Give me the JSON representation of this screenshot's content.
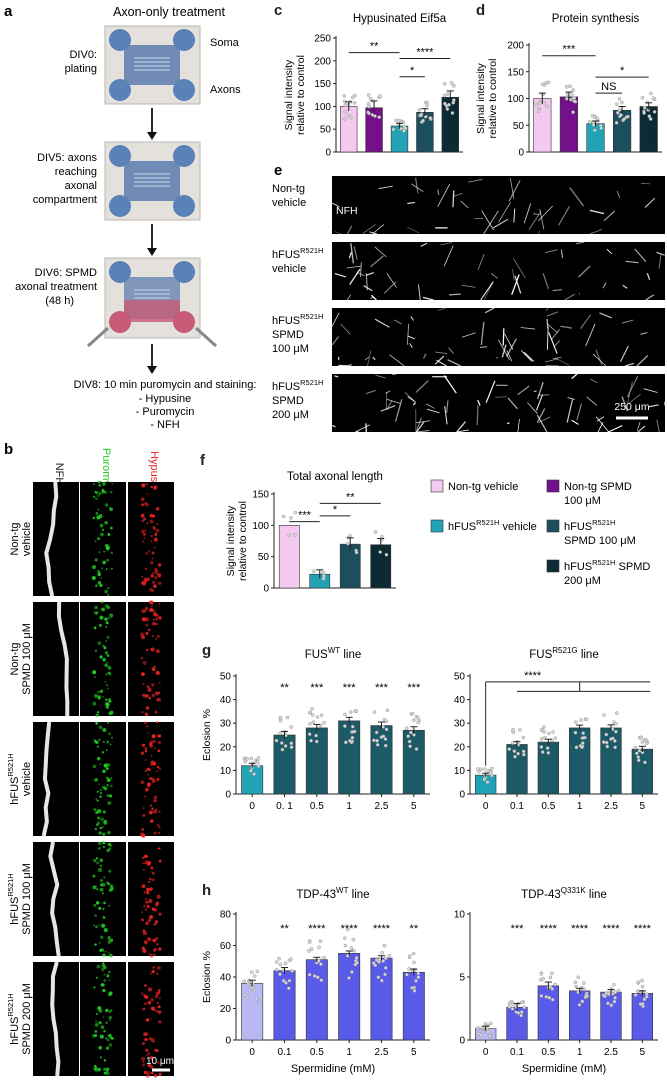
{
  "panel_letters": [
    "a",
    "b",
    "c",
    "d",
    "e",
    "f",
    "g",
    "h"
  ],
  "panel_a": {
    "title": "Axon-only treatment",
    "soma_label": "Soma",
    "axons_label": "Axons",
    "steps": [
      "DIV0:",
      "plating",
      "DIV5: axons",
      "reaching",
      "axonal",
      "compartment",
      "DIV6: SPMD",
      "axonal treatment",
      "(48 h)"
    ],
    "final_lines": [
      "DIV8: 10 min puromycin and staining:",
      "- Hypusine",
      "- Puromycin",
      "- NFH"
    ]
  },
  "panel_b": {
    "channels": [
      "NFH",
      "Puromycin",
      "Hypusine"
    ],
    "channel_colors": [
      "#ffffff",
      "#22cc22",
      "#ee2222"
    ],
    "rows": [
      {
        "l1": "Non-tg",
        "l2": "vehicle"
      },
      {
        "l1": "Non-tg",
        "l2": "SPMD 100 μM"
      },
      {
        "l1": "hFUS",
        "sup": "R521H",
        "l2": "vehicle"
      },
      {
        "l1": "hFUS",
        "sup": "R521H",
        "l2": "SPMD 100 μM"
      },
      {
        "l1": "hFUS",
        "sup": "R521H",
        "l2": "SPMD 200 μM"
      }
    ],
    "scale": "10 μm"
  },
  "panel_e": {
    "rows": [
      {
        "l1": "Non-tg",
        "l2": "vehicle"
      },
      {
        "l1": "hFUS",
        "sup": "R521H",
        "l2": "vehicle"
      },
      {
        "l1": "hFUS",
        "sup": "R521H",
        "l2": "SPMD",
        "l3": "100 μM"
      },
      {
        "l1": "hFUS",
        "sup": "R521H",
        "l2": "SPMD",
        "l3": "200 μM"
      }
    ],
    "stain": "NFH",
    "scale": "250 μm"
  },
  "legend": {
    "items": [
      {
        "text": "Non-tg vehicle",
        "color": "#f3c9f0"
      },
      {
        "text": "Non-tg SPMD",
        "text2": "100 μM",
        "color": "#74108a"
      },
      {
        "text": "hFUS",
        "sup": "R521H",
        "tail": " vehicle",
        "color": "#21a3b5"
      },
      {
        "text": "hFUS",
        "sup": "R521H",
        "text2": "SPMD 100 μM",
        "color": "#1b4f5e"
      },
      {
        "text": "hFUS",
        "sup": "R521H",
        "tail": " SPMD",
        "text2": "200 μM",
        "color": "#0b2a33"
      }
    ]
  },
  "chart_data": [
    {
      "id": "c",
      "type": "bar",
      "title": "Hypusinated Eif5a",
      "ylabel": [
        "Signal intensity",
        "relative to control"
      ],
      "ylim": [
        0,
        250
      ],
      "yticks": [
        0,
        50,
        100,
        150,
        200,
        250
      ],
      "values": [
        100,
        97,
        57,
        87,
        120
      ],
      "errors": [
        10,
        15,
        6,
        8,
        14
      ],
      "colors": [
        "#f3c9f0",
        "#74108a",
        "#21a3b5",
        "#1b4f5e",
        "#0b2a33"
      ],
      "xticks": [],
      "brackets": [
        {
          "from": 0,
          "to": 2,
          "label": "**",
          "y": 218
        },
        {
          "from": 2,
          "to": 4,
          "label": "****",
          "y": 205
        },
        {
          "from": 2,
          "to": 3,
          "label": "*",
          "y": 165
        }
      ]
    },
    {
      "id": "d",
      "type": "bar",
      "title": "Protein synthesis",
      "ylabel": [
        "Signal intensity",
        "relative to control"
      ],
      "ylim": [
        0,
        200
      ],
      "yticks": [
        0,
        50,
        100,
        150,
        200
      ],
      "values": [
        100,
        103,
        53,
        78,
        85
      ],
      "errors": [
        10,
        9,
        5,
        7,
        7
      ],
      "colors": [
        "#f3c9f0",
        "#74108a",
        "#21a3b5",
        "#1b4f5e",
        "#0b2a33"
      ],
      "xticks": [],
      "brackets": [
        {
          "from": 0,
          "to": 2,
          "label": "***",
          "y": 180
        },
        {
          "from": 2,
          "to": 4,
          "label": "*",
          "y": 140
        },
        {
          "from": 2,
          "to": 3,
          "label": "NS",
          "y": 110
        }
      ]
    },
    {
      "id": "f",
      "type": "bar",
      "title": "Total axonal length",
      "ylabel": [
        "Signal intensity",
        "relative to control"
      ],
      "ylim": [
        0,
        150
      ],
      "yticks": [
        0,
        50,
        100,
        150
      ],
      "values": [
        100,
        22,
        70,
        69
      ],
      "errors": [
        0,
        7,
        10,
        10
      ],
      "colors": [
        "#f3c9f0",
        "#21a3b5",
        "#1b4f5e",
        "#0b2a33"
      ],
      "xticks": [],
      "brackets": [
        {
          "from": 0,
          "to": 1,
          "label": "***",
          "y": 106
        },
        {
          "from": 1,
          "to": 2,
          "label": "*",
          "y": 115
        },
        {
          "from": 1,
          "to": 3,
          "label": "**",
          "y": 135
        }
      ]
    },
    {
      "id": "g1",
      "type": "bar",
      "title": "FUS",
      "title_sup": "WT",
      "title_tail": " line",
      "ylabel": [
        "Eclosion %"
      ],
      "ylim": [
        0,
        50
      ],
      "yticks": [
        0,
        10,
        20,
        30,
        40,
        50
      ],
      "xticks": [
        "0",
        "0. 1",
        "0.5",
        "1",
        "2.5",
        "5"
      ],
      "values": [
        12,
        25,
        28,
        31,
        29,
        27
      ],
      "errors": [
        1,
        1.5,
        1.5,
        1.5,
        1.5,
        1.5
      ],
      "colors": [
        "#21a3b5",
        "#1b5a66",
        "#1b5a66",
        "#1b5a66",
        "#1b5a66",
        "#1b5a66"
      ],
      "stars": [
        "",
        "**",
        "***",
        "***",
        "***",
        "***"
      ]
    },
    {
      "id": "g2",
      "type": "bar",
      "title": "FUS",
      "title_sup": "R521G",
      "title_tail": " line",
      "ylabel": [],
      "ylim": [
        0,
        50
      ],
      "yticks": [
        0,
        10,
        20,
        30,
        40,
        50
      ],
      "xticks": [
        "0",
        "0.1",
        "0.5",
        "1",
        "2.5",
        "5"
      ],
      "values": [
        8,
        21,
        22,
        28,
        28,
        19
      ],
      "errors": [
        0.8,
        1.2,
        1.2,
        1.2,
        1.3,
        1.2
      ],
      "colors": [
        "#21a3b5",
        "#1b5a66",
        "#1b5a66",
        "#1b5a66",
        "#1b5a66",
        "#1b5a66"
      ],
      "group_bracket": {
        "label": "****"
      }
    },
    {
      "id": "h1",
      "type": "bar",
      "title": "TDP-43",
      "title_sup": "WT",
      "title_tail": " line",
      "ylabel": [
        "Eclosion %"
      ],
      "xlabel": "Spermidine (mM)",
      "ylim": [
        0,
        80
      ],
      "yticks": [
        0,
        20,
        40,
        60,
        80
      ],
      "xticks": [
        "0",
        "0.1",
        "0.5",
        "1",
        "2.5",
        "5"
      ],
      "values": [
        36,
        44,
        51,
        55,
        52,
        43
      ],
      "errors": [
        2,
        2,
        1.5,
        1.5,
        1.5,
        2
      ],
      "colors": [
        "#b9b8f2",
        "#5a5ae8",
        "#5a5ae8",
        "#5a5ae8",
        "#5a5ae8",
        "#5a5ae8"
      ],
      "stars": [
        "",
        "**",
        "****",
        "****",
        "****",
        "**"
      ]
    },
    {
      "id": "h2",
      "type": "bar",
      "title": "TDP-43",
      "title_sup": "Q331K",
      "title_tail": " line",
      "ylabel": [],
      "xlabel": "Spermidine (mM)",
      "ylim": [
        0,
        10
      ],
      "yticks": [
        0,
        5,
        10
      ],
      "xticks": [
        "0",
        "0.1",
        "0.5",
        "1",
        "2.5",
        "5"
      ],
      "values": [
        0.9,
        2.6,
        4.3,
        3.9,
        3.8,
        3.7
      ],
      "errors": [
        0.2,
        0.3,
        0.3,
        0.2,
        0.2,
        0.2
      ],
      "colors": [
        "#b9b8f2",
        "#5a5ae8",
        "#5a5ae8",
        "#5a5ae8",
        "#5a5ae8",
        "#5a5ae8"
      ],
      "stars": [
        "",
        "***",
        "****",
        "****",
        "****",
        "****"
      ]
    }
  ]
}
